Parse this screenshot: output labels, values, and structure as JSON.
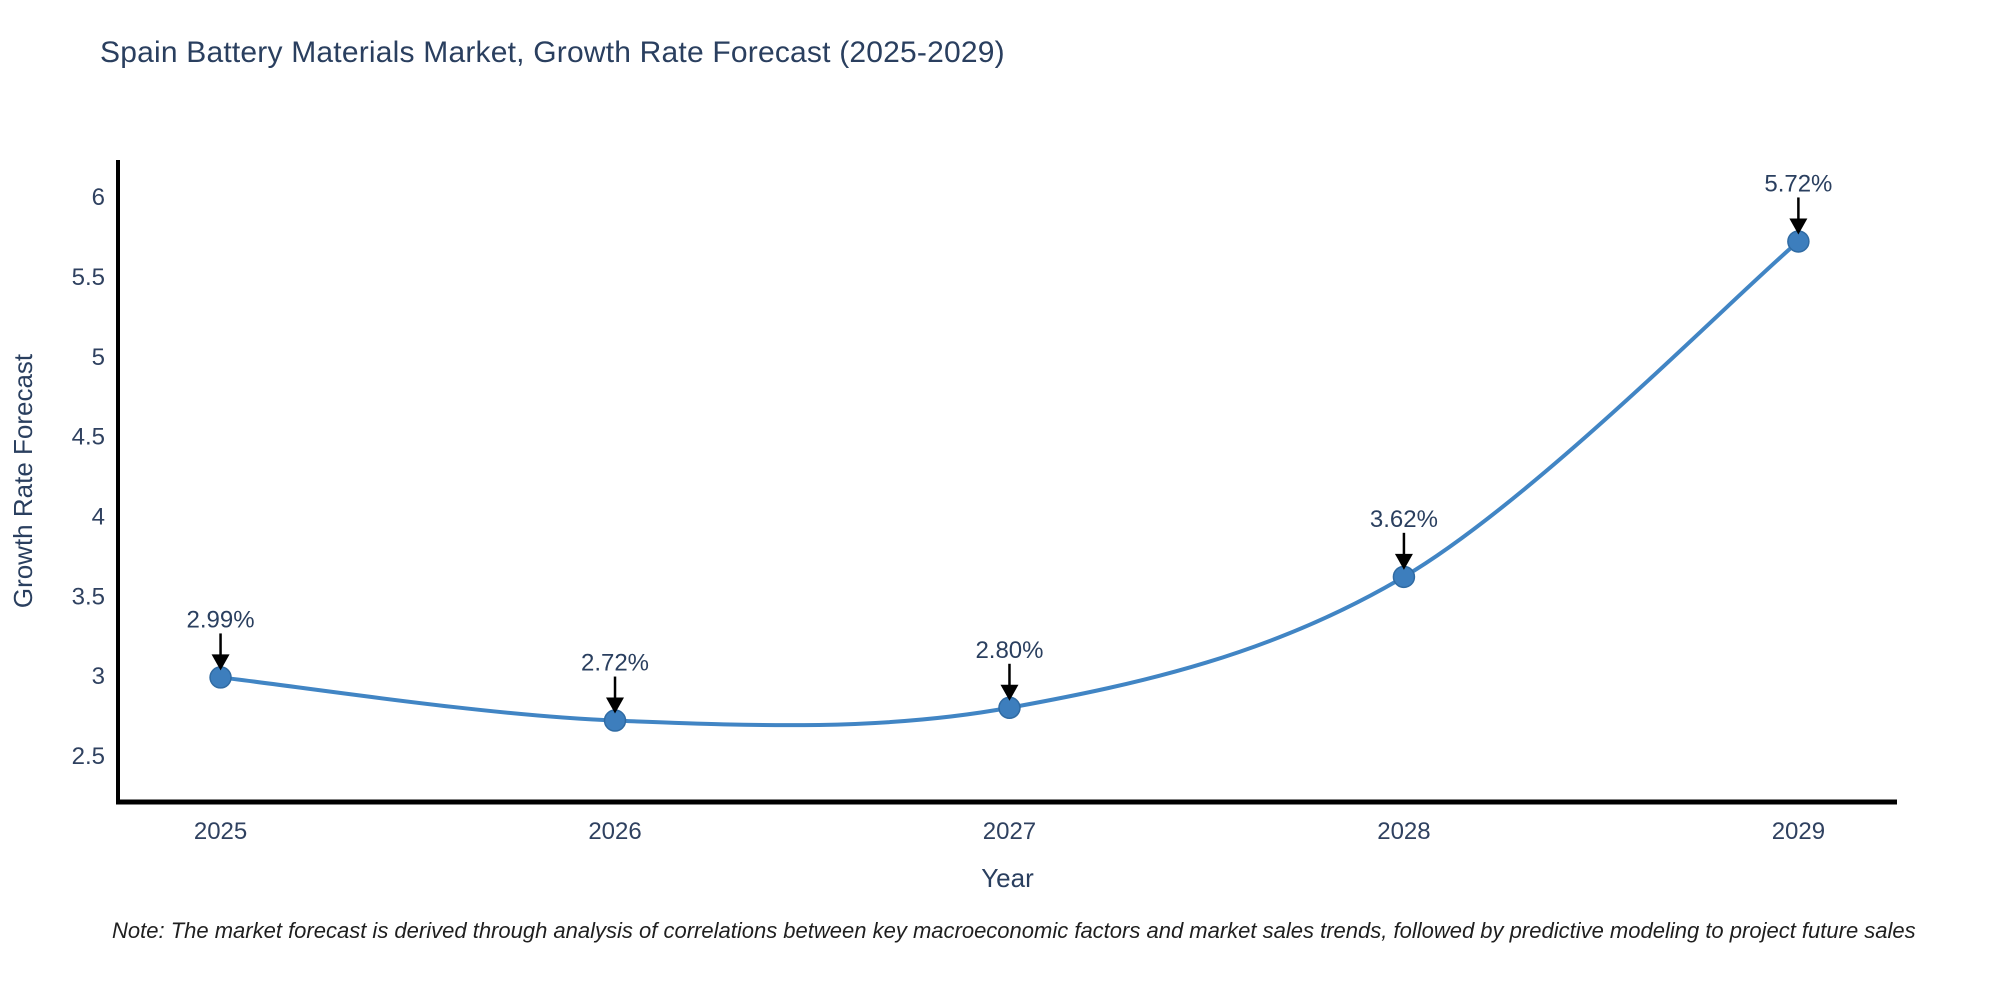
{
  "title": "Spain Battery Materials Market, Growth Rate Forecast (2025-2029)",
  "note": "Note: The market forecast is derived through analysis of correlations between key macroeconomic factors and market sales trends, followed by predictive modeling to project future sales",
  "colors": {
    "line": "#4185c4",
    "marker_fill": "#3d7ebd",
    "marker_edge": "#306ba3",
    "axis": "#000000",
    "tick_text": "#2f4160",
    "label_text": "#2a3f5f",
    "annotation_text": "#2a3f5f",
    "arrow": "#000000",
    "background": "#ffffff"
  },
  "chart_data": {
    "type": "line",
    "line_shape": "spline",
    "title": "Spain Battery Materials Market, Growth Rate Forecast (2025-2029)",
    "xlabel": "Year",
    "ylabel": "Growth Rate Forecast",
    "x": [
      2025,
      2026,
      2027,
      2028,
      2029
    ],
    "values": [
      2.99,
      2.72,
      2.8,
      3.62,
      5.72
    ],
    "point_labels": [
      "2.99%",
      "2.72%",
      "2.80%",
      "3.62%",
      "5.72%"
    ],
    "x_tick_labels": [
      "2025",
      "2026",
      "2027",
      "2028",
      "2029"
    ],
    "y_tick_values": [
      2.5,
      3,
      3.5,
      4,
      4.5,
      5,
      5.5,
      6
    ],
    "y_tick_labels": [
      "2.5",
      "3",
      "3.5",
      "4",
      "4.5",
      "5",
      "5.5",
      "6"
    ],
    "xlim": [
      2024.74,
      2029.25
    ],
    "ylim": [
      2.21,
      6.23
    ],
    "grid": false,
    "legend_position": "none",
    "annotations_have_arrows": true
  }
}
